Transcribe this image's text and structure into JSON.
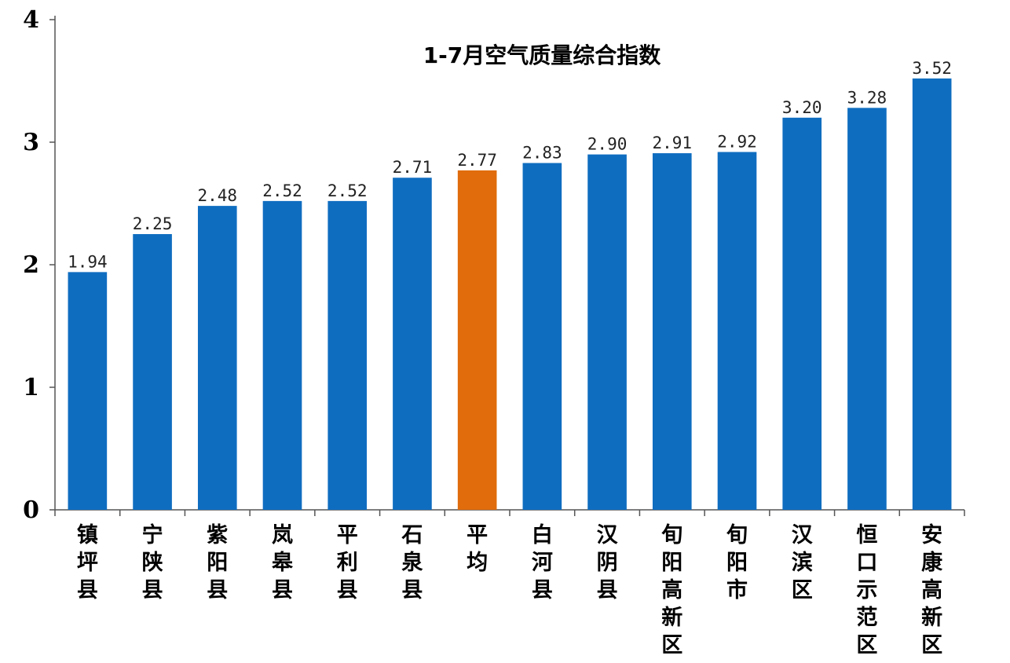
{
  "chart_data": {
    "type": "bar",
    "title": "1-7月空气质量综合指数",
    "xlabel": "",
    "ylabel": "",
    "ylim": [
      0,
      4
    ],
    "yticks": [
      "0",
      "1",
      "2",
      "3",
      "4"
    ],
    "grid": false,
    "categories": [
      "镇坪县",
      "宁陕县",
      "紫阳县",
      "岚皋县",
      "平利县",
      "石泉县",
      "平均",
      "白河县",
      "汉阴县",
      "旬阳高新区",
      "旬阳市",
      "汉滨区",
      "恒口示范区",
      "安康高新区"
    ],
    "values": [
      1.94,
      2.25,
      2.48,
      2.52,
      2.52,
      2.71,
      2.77,
      2.83,
      2.9,
      2.91,
      2.92,
      3.2,
      3.28,
      3.52
    ],
    "value_labels": [
      "1.94",
      "2.25",
      "2.48",
      "2.52",
      "2.52",
      "2.71",
      "2.77",
      "2.83",
      "2.90",
      "2.91",
      "2.92",
      "3.20",
      "3.28",
      "3.52"
    ],
    "colors": {
      "bar": "#0f6dc0",
      "highlight": "#e06c0c",
      "axis": "#555555"
    },
    "highlight_category": "平均"
  }
}
